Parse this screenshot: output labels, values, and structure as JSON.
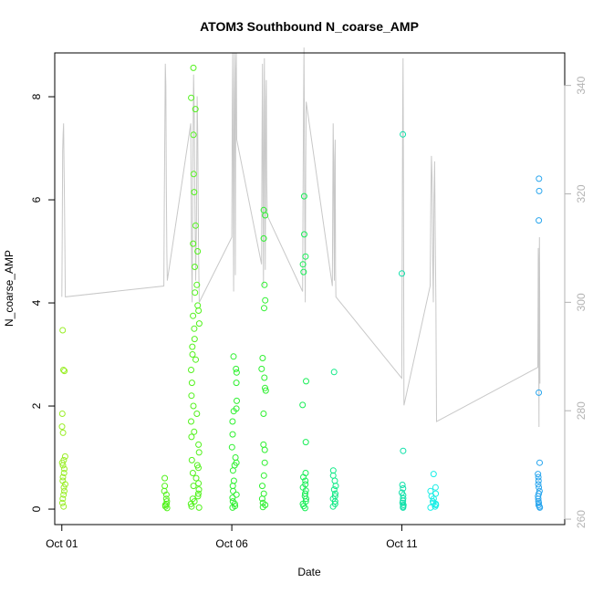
{
  "chart_data": {
    "type": "scatter",
    "title": "ATOM3 Southbound N_coarse_AMP",
    "xlabel": "Date",
    "ylabel": "N_coarse_AMP",
    "xlim": [
      "2016-09-30T19:00",
      "2016-10-15T19:00"
    ],
    "ylim": [
      -0.3,
      8.85
    ],
    "y2lim": [
      259,
      346
    ],
    "x_ticks": [
      {
        "value": "2016-10-01T00:00",
        "label": "Oct 01"
      },
      {
        "value": "2016-10-06T00:00",
        "label": "Oct 06"
      },
      {
        "value": "2016-10-11T00:00",
        "label": "Oct 11"
      }
    ],
    "y_ticks": [
      0,
      2,
      4,
      6,
      8
    ],
    "y2_ticks": [
      260,
      280,
      300,
      320,
      340
    ],
    "grid": false,
    "legend": "none",
    "colors": {
      "secondary_line": "#c8c8c8",
      "right_axis": "#b3b3b3",
      "flight_points": [
        "#9aee28",
        "#52f21c",
        "#2ef030",
        "#18ee56",
        "#10ea86",
        "#0ce0a8",
        "#18eee6",
        "#10e2f2",
        "#2aa6ee"
      ]
    },
    "flights": [
      {
        "start": "2016-10-01T00:00",
        "end": "2016-10-01T02:30",
        "color_index": 0,
        "values": [
          3.47,
          2.7,
          2.68,
          1.85,
          1.6,
          1.48,
          1.02,
          0.95,
          0.9,
          0.85,
          0.78,
          0.7,
          0.62,
          0.55,
          0.48,
          0.42,
          0.35,
          0.28,
          0.2,
          0.12,
          0.05
        ],
        "alt_values": [
          301,
          312,
          328,
          331,
          333,
          325,
          318,
          309,
          301
        ]
      },
      {
        "start": "2016-10-04T00:00",
        "end": "2016-10-04T02:30",
        "color_index": 1,
        "values": [
          0.6,
          0.45,
          0.35,
          0.28,
          0.2,
          0.15,
          0.1,
          0.08,
          0.05,
          0.02
        ],
        "alt_values": [
          303,
          318,
          332,
          344,
          340,
          322,
          309,
          304
        ]
      },
      {
        "start": "2016-10-04T19:00",
        "end": "2016-10-05T01:00",
        "color_index": 1,
        "values": [
          8.56,
          7.98,
          7.76,
          7.26,
          6.5,
          6.15,
          5.5,
          5.15,
          5.0,
          4.7,
          4.35,
          4.2,
          3.95,
          3.85,
          3.75,
          3.6,
          3.5,
          3.3,
          3.15,
          3.0,
          2.9,
          2.7,
          2.45,
          2.2,
          2.0,
          1.85,
          1.7,
          1.5,
          1.4,
          1.25,
          1.1,
          0.95,
          0.85,
          0.8,
          0.7,
          0.6,
          0.5,
          0.45,
          0.38,
          0.3,
          0.25,
          0.2,
          0.15,
          0.1,
          0.05,
          0.03
        ],
        "alt_values": [
          333,
          312,
          300,
          325,
          342,
          335,
          318,
          304,
          314,
          338,
          330,
          310,
          300
        ]
      },
      {
        "start": "2016-10-06T00:00",
        "end": "2016-10-06T03:30",
        "color_index": 2,
        "values": [
          2.96,
          2.72,
          2.65,
          2.45,
          2.1,
          1.95,
          1.9,
          1.7,
          1.45,
          1.2,
          1.0,
          0.9,
          0.85,
          0.75,
          0.55,
          0.45,
          0.35,
          0.28,
          0.22,
          0.15,
          0.1,
          0.06,
          0.03
        ],
        "alt_values": [
          312,
          336,
          346,
          320,
          302,
          338,
          346,
          326,
          305,
          343,
          346,
          330
        ]
      },
      {
        "start": "2016-10-06T21:00",
        "end": "2016-10-07T01:00",
        "color_index": 2,
        "values": [
          5.8,
          5.7,
          5.25,
          4.35,
          4.05,
          3.9,
          2.93,
          2.72,
          2.55,
          2.35,
          2.3,
          1.85,
          1.25,
          1.15,
          0.9,
          0.65,
          0.45,
          0.3,
          0.2,
          0.12,
          0.08,
          0.04
        ],
        "alt_values": [
          307,
          330,
          344,
          320,
          303,
          335,
          345,
          324,
          306,
          337,
          341,
          322,
          316
        ]
      },
      {
        "start": "2016-10-08T02:00",
        "end": "2016-10-08T04:30",
        "color_index": 3,
        "values": [
          6.07,
          5.33,
          4.9,
          4.75,
          4.6,
          2.48,
          2.02,
          1.3,
          0.7,
          0.62,
          0.55,
          0.48,
          0.42,
          0.36,
          0.3,
          0.25,
          0.2,
          0.15,
          0.1,
          0.06,
          0.02
        ],
        "alt_values": [
          302,
          320,
          335,
          347,
          330,
          310,
          300,
          325,
          337
        ]
      },
      {
        "start": "2016-10-08T23:00",
        "end": "2016-10-09T01:30",
        "color_index": 4,
        "values": [
          2.66,
          0.75,
          0.65,
          0.55,
          0.45,
          0.38,
          0.3,
          0.25,
          0.2,
          0.15,
          0.1,
          0.05
        ],
        "alt_values": [
          303,
          320,
          333,
          327,
          311,
          304,
          326,
          330,
          306,
          301
        ]
      },
      {
        "start": "2016-10-11T00:00",
        "end": "2016-10-11T01:30",
        "color_index": 5,
        "values": [
          7.27,
          4.57,
          1.13,
          0.47,
          0.4,
          0.32,
          0.27,
          0.21,
          0.16,
          0.12,
          0.08,
          0.05,
          0.03
        ],
        "alt_values": [
          286,
          306,
          322,
          335,
          345,
          330,
          310,
          281
        ]
      },
      {
        "start": "2016-10-11T20:00",
        "end": "2016-10-12T00:30",
        "color_index": 6,
        "values": [
          0.68,
          0.42,
          0.35,
          0.3,
          0.25,
          0.2,
          0.15,
          0.12,
          0.1,
          0.08,
          0.05,
          0.03
        ],
        "alt_values": [
          303,
          318,
          327,
          323,
          308,
          300,
          319,
          326,
          312,
          300,
          278
        ]
      },
      {
        "start": "2016-10-15T00:00",
        "end": "2016-10-15T01:30",
        "color_index": 8,
        "values": [
          6.41,
          6.17,
          5.6,
          2.26,
          0.9,
          0.68,
          0.62,
          0.55,
          0.48,
          0.42,
          0.35,
          0.3,
          0.25,
          0.2,
          0.15,
          0.12,
          0.08,
          0.05,
          0.03
        ],
        "alt_values": [
          288,
          300,
          310,
          304,
          290,
          277,
          306,
          312,
          300,
          285
        ]
      }
    ]
  }
}
